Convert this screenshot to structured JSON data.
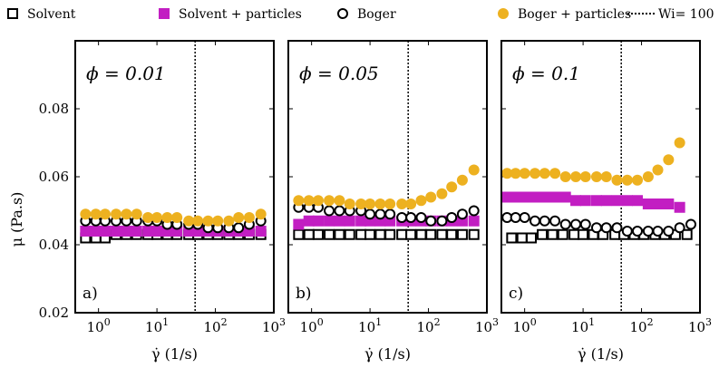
{
  "legend": [
    {
      "name": "Solvent",
      "marker": "square-open",
      "color": "#000000"
    },
    {
      "name": "Solvent + particles",
      "marker": "square-filled",
      "color": "#c21ec2"
    },
    {
      "name": "Boger",
      "marker": "circle-open",
      "color": "#000000"
    },
    {
      "name": "Boger + particles",
      "marker": "circle-filled",
      "color": "#edb120"
    },
    {
      "name": "Wi= 100",
      "marker": "dotted-line",
      "color": "#000000"
    }
  ],
  "chart_data": [
    {
      "type": "scatter",
      "panel_label": "a)",
      "annotation": "ϕ = 0.01",
      "xlabel": "γ̇ (1/s)",
      "ylabel": "μ (Pa.s)",
      "xscale": "log",
      "xlim": [
        0.4,
        1000
      ],
      "ylim": [
        0.02,
        0.1
      ],
      "yticks": [
        0.02,
        0.04,
        0.06,
        0.08
      ],
      "xticks": [
        1,
        10,
        100,
        1000
      ],
      "vline": {
        "label": "Wi= 100",
        "x": 45
      },
      "series": [
        {
          "name": "Solvent",
          "x": [
            0.6,
            0.9,
            1.3,
            2,
            3,
            4.5,
            7,
            10,
            15,
            22,
            35,
            50,
            75,
            110,
            170,
            250,
            380,
            600
          ],
          "y": [
            0.042,
            0.042,
            0.042,
            0.043,
            0.043,
            0.043,
            0.043,
            0.043,
            0.043,
            0.043,
            0.043,
            0.043,
            0.043,
            0.043,
            0.043,
            0.043,
            0.043,
            0.043
          ]
        },
        {
          "name": "Solvent + particles",
          "x": [
            0.6,
            0.9,
            1.3,
            2,
            3,
            4.5,
            7,
            10,
            15,
            22,
            35,
            50,
            75,
            110,
            170,
            250,
            380,
            600
          ],
          "y": [
            0.044,
            0.044,
            0.044,
            0.044,
            0.044,
            0.044,
            0.044,
            0.044,
            0.044,
            0.044,
            0.044,
            0.044,
            0.044,
            0.044,
            0.044,
            0.044,
            0.044,
            0.044
          ]
        },
        {
          "name": "Boger",
          "x": [
            0.6,
            0.9,
            1.3,
            2,
            3,
            4.5,
            7,
            10,
            15,
            22,
            35,
            50,
            75,
            110,
            170,
            250,
            380,
            600
          ],
          "y": [
            0.047,
            0.047,
            0.047,
            0.047,
            0.047,
            0.047,
            0.047,
            0.047,
            0.046,
            0.046,
            0.046,
            0.046,
            0.045,
            0.045,
            0.045,
            0.045,
            0.046,
            0.047
          ]
        },
        {
          "name": "Boger + particles",
          "x": [
            0.6,
            0.9,
            1.3,
            2,
            3,
            4.5,
            7,
            10,
            15,
            22,
            35,
            50,
            75,
            110,
            170,
            250,
            380,
            600
          ],
          "y": [
            0.049,
            0.049,
            0.049,
            0.049,
            0.049,
            0.049,
            0.048,
            0.048,
            0.048,
            0.048,
            0.047,
            0.047,
            0.047,
            0.047,
            0.047,
            0.048,
            0.048,
            0.049
          ]
        }
      ]
    },
    {
      "type": "scatter",
      "panel_label": "b)",
      "annotation": "ϕ = 0.05",
      "xlabel": "γ̇ (1/s)",
      "xscale": "log",
      "xlim": [
        0.4,
        1000
      ],
      "ylim": [
        0.02,
        0.1
      ],
      "xticks": [
        1,
        10,
        100,
        1000
      ],
      "vline": {
        "label": "Wi= 100",
        "x": 45
      },
      "series": [
        {
          "name": "Solvent",
          "x": [
            0.6,
            0.9,
            1.3,
            2,
            3,
            4.5,
            7,
            10,
            15,
            22,
            35,
            50,
            75,
            110,
            170,
            250,
            380,
            600
          ],
          "y": [
            0.043,
            0.043,
            0.043,
            0.043,
            0.043,
            0.043,
            0.043,
            0.043,
            0.043,
            0.043,
            0.043,
            0.043,
            0.043,
            0.043,
            0.043,
            0.043,
            0.043,
            0.043
          ]
        },
        {
          "name": "Solvent + particles",
          "x": [
            0.6,
            0.9,
            1.3,
            2,
            3,
            4.5,
            7,
            10,
            15,
            22,
            35,
            50,
            75,
            110,
            170,
            250,
            380,
            600
          ],
          "y": [
            0.046,
            0.047,
            0.047,
            0.047,
            0.047,
            0.047,
            0.047,
            0.047,
            0.047,
            0.047,
            0.047,
            0.047,
            0.047,
            0.047,
            0.047,
            0.047,
            0.047,
            0.047
          ]
        },
        {
          "name": "Boger",
          "x": [
            0.6,
            0.9,
            1.3,
            2,
            3,
            4.5,
            7,
            10,
            15,
            22,
            35,
            50,
            75,
            110,
            170,
            250,
            380,
            600
          ],
          "y": [
            0.051,
            0.051,
            0.051,
            0.05,
            0.05,
            0.05,
            0.05,
            0.049,
            0.049,
            0.049,
            0.048,
            0.048,
            0.048,
            0.047,
            0.047,
            0.048,
            0.049,
            0.05
          ]
        },
        {
          "name": "Boger + particles",
          "x": [
            0.6,
            0.9,
            1.3,
            2,
            3,
            4.5,
            7,
            10,
            15,
            22,
            35,
            50,
            75,
            110,
            170,
            250,
            380,
            600
          ],
          "y": [
            0.053,
            0.053,
            0.053,
            0.053,
            0.053,
            0.052,
            0.052,
            0.052,
            0.052,
            0.052,
            0.052,
            0.052,
            0.053,
            0.054,
            0.055,
            0.057,
            0.059,
            0.062
          ]
        }
      ]
    },
    {
      "type": "scatter",
      "panel_label": "c)",
      "annotation": "ϕ = 0.1",
      "xlabel": "γ̇ (1/s)",
      "xscale": "log",
      "xlim": [
        0.4,
        1000
      ],
      "ylim": [
        0.02,
        0.1
      ],
      "xticks": [
        1,
        10,
        100,
        1000
      ],
      "vline": {
        "label": "Wi= 100",
        "x": 45
      },
      "series": [
        {
          "name": "Solvent",
          "x": [
            0.6,
            0.9,
            1.3,
            2,
            3,
            4.5,
            7,
            10,
            15,
            22,
            35,
            50,
            75,
            110,
            170,
            250,
            380,
            600
          ],
          "y": [
            0.042,
            0.042,
            0.042,
            0.043,
            0.043,
            0.043,
            0.043,
            0.043,
            0.043,
            0.043,
            0.043,
            0.043,
            0.043,
            0.043,
            0.043,
            0.043,
            0.043,
            0.043
          ]
        },
        {
          "name": "Solvent + particles",
          "x": [
            0.5,
            0.7,
            1,
            1.5,
            2.2,
            3.3,
            5,
            7.5,
            11,
            17,
            25,
            38,
            57,
            85,
            130,
            190,
            290,
            450
          ],
          "y": [
            0.054,
            0.054,
            0.054,
            0.054,
            0.054,
            0.054,
            0.054,
            0.053,
            0.053,
            0.053,
            0.053,
            0.053,
            0.053,
            0.053,
            0.052,
            0.052,
            0.052,
            0.051
          ]
        },
        {
          "name": "Boger",
          "x": [
            0.5,
            0.7,
            1,
            1.5,
            2.2,
            3.3,
            5,
            7.5,
            11,
            17,
            25,
            38,
            57,
            85,
            130,
            190,
            290,
            450,
            700
          ],
          "y": [
            0.048,
            0.048,
            0.048,
            0.047,
            0.047,
            0.047,
            0.046,
            0.046,
            0.046,
            0.045,
            0.045,
            0.045,
            0.044,
            0.044,
            0.044,
            0.044,
            0.044,
            0.045,
            0.046
          ]
        },
        {
          "name": "Boger + particles",
          "x": [
            0.5,
            0.7,
            1,
            1.5,
            2.2,
            3.3,
            5,
            7.5,
            11,
            17,
            25,
            38,
            57,
            85,
            130,
            190,
            290,
            450
          ],
          "y": [
            0.061,
            0.061,
            0.061,
            0.061,
            0.061,
            0.061,
            0.06,
            0.06,
            0.06,
            0.06,
            0.06,
            0.059,
            0.059,
            0.059,
            0.06,
            0.062,
            0.065,
            0.07
          ]
        }
      ]
    }
  ]
}
